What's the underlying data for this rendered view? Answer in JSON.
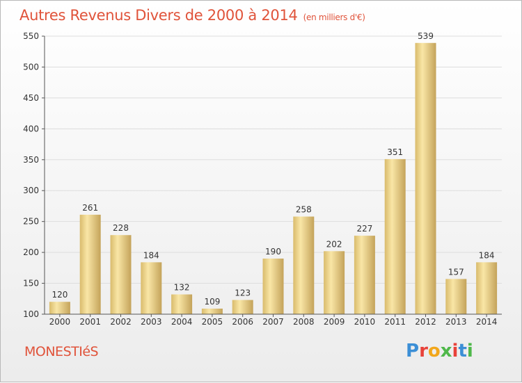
{
  "title": {
    "main": "Autres Revenus Divers de 2000 à 2014",
    "unit": "(en milliers d'€)"
  },
  "commune": "MONESTIéS",
  "brand": {
    "letters": [
      "P",
      "r",
      "o",
      "x",
      "i",
      "t",
      "i"
    ],
    "colors": [
      "#3c8fd6",
      "#e8423a",
      "#f2a71b",
      "#4fb84a",
      "#e8423a",
      "#3c8fd6",
      "#4fb84a"
    ]
  },
  "colors": {
    "title": "#e0533a",
    "bar_light": "#f8e3a0",
    "bar_dark": "#c9a95d",
    "grid": "#dddddd",
    "axis": "#555555"
  },
  "chart_data": {
    "type": "bar",
    "categories": [
      "2000",
      "2001",
      "2002",
      "2003",
      "2004",
      "2005",
      "2006",
      "2007",
      "2008",
      "2009",
      "2010",
      "2011",
      "2012",
      "2013",
      "2014"
    ],
    "values": [
      120,
      261,
      228,
      184,
      132,
      109,
      123,
      190,
      258,
      202,
      227,
      351,
      539,
      157,
      184
    ],
    "ylim": [
      100,
      550
    ],
    "yticks": [
      100,
      150,
      200,
      250,
      300,
      350,
      400,
      450,
      500,
      550
    ],
    "grid": "horizontal",
    "title": "Autres Revenus Divers de 2000 à 2014",
    "xlabel": "",
    "ylabel": ""
  }
}
